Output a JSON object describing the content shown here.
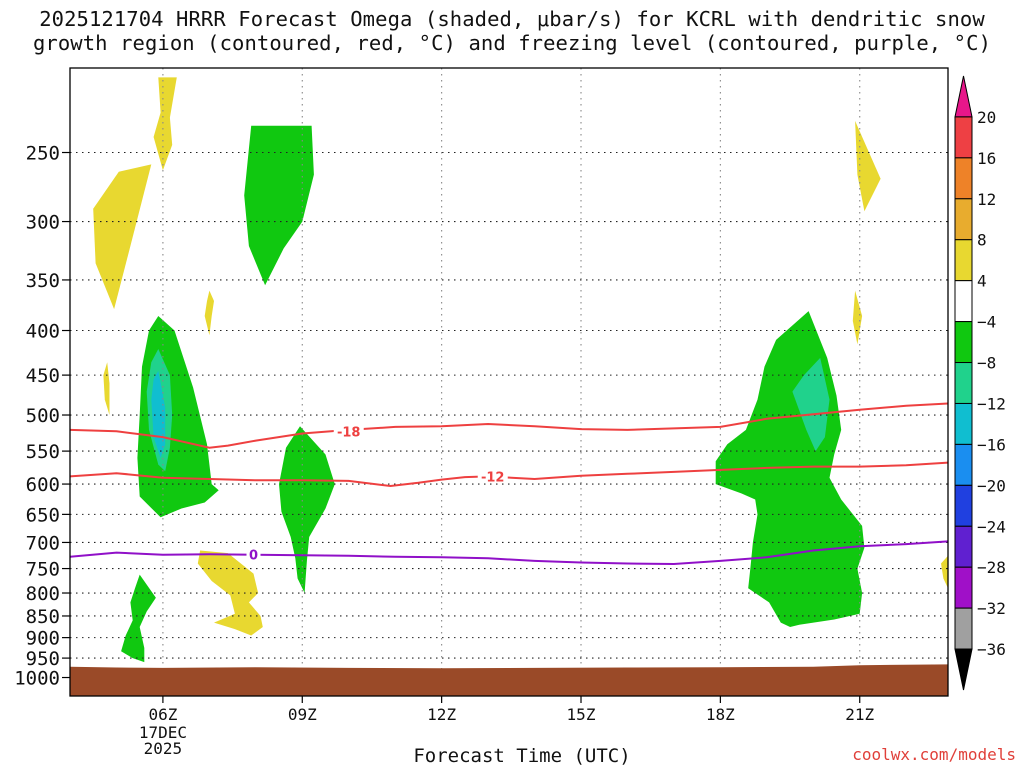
{
  "title_line1": "2025121704 HRRR Forecast Omega (shaded, μbar/s) for KCRL with dendritic snow",
  "title_line2": "growth region (contoured, red, °C) and freezing level (contoured, purple, °C)",
  "credit": "coolwx.com/models",
  "chart_data": {
    "type": "heatmap",
    "title": "2025121704 HRRR Forecast Omega (shaded, μbar/s) for KCRL with dendritic snow growth region (contoured, red, °C) and freezing level (contoured, purple, °C)",
    "xlabel": "Forecast Time (UTC)",
    "ylabel": "",
    "x_unit": "hour UTC, 17 Dec 2025",
    "xlim": [
      4,
      22.9
    ],
    "ylim": [
      1050,
      200
    ],
    "y_scale": "log",
    "x_ticks": [
      {
        "x": 6,
        "label": "06Z",
        "sublabels": [
          "17DEC",
          "2025"
        ]
      },
      {
        "x": 9,
        "label": "09Z"
      },
      {
        "x": 12,
        "label": "12Z"
      },
      {
        "x": 15,
        "label": "15Z"
      },
      {
        "x": 18,
        "label": "18Z"
      },
      {
        "x": 21,
        "label": "21Z"
      }
    ],
    "y_ticks": [
      250,
      300,
      350,
      400,
      450,
      500,
      550,
      600,
      650,
      700,
      750,
      800,
      850,
      900,
      950,
      1000
    ],
    "grid": true,
    "colorbar": {
      "position": "right",
      "levels": [
        20,
        16,
        12,
        8,
        4,
        -4,
        -8,
        -12,
        -16,
        -20,
        -24,
        -28,
        -32,
        -36
      ],
      "bins": [
        {
          "range": "above 20",
          "color": "#e8168a"
        },
        {
          "range": "16 to 20",
          "color": "#ee4044"
        },
        {
          "range": "12 to 16",
          "color": "#ee8228"
        },
        {
          "range": "8 to 12",
          "color": "#e8ac2e"
        },
        {
          "range": "4 to 8",
          "color": "#e8d830"
        },
        {
          "range": "-4 to 4",
          "color": "#ffffff"
        },
        {
          "range": "-8 to -4",
          "color": "#10c810"
        },
        {
          "range": "-12 to -8",
          "color": "#20d28c"
        },
        {
          "range": "-16 to -12",
          "color": "#10bed0"
        },
        {
          "range": "-20 to -16",
          "color": "#1a8ef0"
        },
        {
          "range": "-24 to -20",
          "color": "#2040e0"
        },
        {
          "range": "-28 to -24",
          "color": "#6020d0"
        },
        {
          "range": "-32 to -28",
          "color": "#a010c8"
        },
        {
          "range": "-36 to -32",
          "color": "#a0a0a0"
        },
        {
          "range": "below -36",
          "color": "#000000"
        }
      ]
    },
    "ground": {
      "color": "#9a4a28"
    },
    "shaded_regions": [
      {
        "bin": "4 to 8",
        "points": [
          [
            5.05,
            263
          ],
          [
            5.75,
            258
          ],
          [
            5.3,
            320
          ],
          [
            4.95,
            378
          ],
          [
            4.55,
            335
          ],
          [
            4.5,
            290
          ]
        ]
      },
      {
        "bin": "4 to 8",
        "points": [
          [
            5.9,
            205
          ],
          [
            6.3,
            205
          ],
          [
            6.15,
            228
          ],
          [
            6.2,
            245
          ],
          [
            6.0,
            262
          ],
          [
            5.8,
            240
          ],
          [
            5.95,
            225
          ]
        ]
      },
      {
        "bin": "4 to 8",
        "points": [
          [
            7.0,
            360
          ],
          [
            7.1,
            370
          ],
          [
            7.05,
            385
          ],
          [
            7.0,
            405
          ],
          [
            6.9,
            385
          ],
          [
            6.95,
            370
          ]
        ]
      },
      {
        "bin": "4 to 8",
        "points": [
          [
            4.8,
            435
          ],
          [
            4.85,
            460
          ],
          [
            4.85,
            500
          ],
          [
            4.75,
            480
          ],
          [
            4.72,
            450
          ]
        ]
      },
      {
        "bin": "4 to 8",
        "points": [
          [
            6.8,
            715
          ],
          [
            7.4,
            720
          ],
          [
            7.95,
            760
          ],
          [
            8.05,
            800
          ],
          [
            7.85,
            820
          ],
          [
            8.1,
            850
          ],
          [
            8.15,
            875
          ],
          [
            7.9,
            895
          ],
          [
            7.55,
            880
          ],
          [
            7.1,
            865
          ],
          [
            7.55,
            845
          ],
          [
            7.45,
            805
          ],
          [
            7.05,
            775
          ],
          [
            6.75,
            740
          ]
        ]
      },
      {
        "bin": "4 to 8",
        "points": [
          [
            20.9,
            230
          ],
          [
            21.45,
            268
          ],
          [
            21.1,
            292
          ],
          [
            20.95,
            265
          ]
        ]
      },
      {
        "bin": "4 to 8",
        "points": [
          [
            20.9,
            360
          ],
          [
            21.05,
            385
          ],
          [
            20.95,
            415
          ],
          [
            20.85,
            390
          ]
        ]
      },
      {
        "bin": "4 to 8",
        "points": [
          [
            22.75,
            740
          ],
          [
            22.9,
            725
          ],
          [
            22.9,
            790
          ],
          [
            22.8,
            770
          ]
        ]
      },
      {
        "bin": "-8 to -4",
        "points": [
          [
            5.9,
            385
          ],
          [
            6.25,
            400
          ],
          [
            6.65,
            465
          ],
          [
            6.95,
            540
          ],
          [
            7.05,
            600
          ],
          [
            7.2,
            610
          ],
          [
            6.9,
            630
          ],
          [
            6.4,
            640
          ],
          [
            5.95,
            655
          ],
          [
            5.5,
            620
          ],
          [
            5.45,
            560
          ],
          [
            5.5,
            500
          ],
          [
            5.55,
            440
          ],
          [
            5.7,
            400
          ]
        ]
      },
      {
        "bin": "-8 to -4",
        "points": [
          [
            7.9,
            233
          ],
          [
            9.2,
            233
          ],
          [
            9.25,
            265
          ],
          [
            9.0,
            300
          ],
          [
            8.6,
            322
          ],
          [
            8.2,
            355
          ],
          [
            7.85,
            320
          ],
          [
            7.75,
            280
          ]
        ]
      },
      {
        "bin": "-8 to -4",
        "points": [
          [
            8.95,
            515
          ],
          [
            9.5,
            555
          ],
          [
            9.7,
            600
          ],
          [
            9.5,
            640
          ],
          [
            9.25,
            675
          ],
          [
            9.15,
            690
          ],
          [
            9.1,
            735
          ],
          [
            9.05,
            800
          ],
          [
            8.9,
            770
          ],
          [
            8.85,
            730
          ],
          [
            8.75,
            690
          ],
          [
            8.55,
            645
          ],
          [
            8.5,
            600
          ],
          [
            8.65,
            545
          ]
        ]
      },
      {
        "bin": "-8 to -4",
        "points": [
          [
            5.5,
            762
          ],
          [
            5.85,
            810
          ],
          [
            5.65,
            840
          ],
          [
            5.5,
            875
          ],
          [
            5.6,
            925
          ],
          [
            5.6,
            960
          ],
          [
            5.35,
            950
          ],
          [
            5.1,
            933
          ],
          [
            5.2,
            895
          ],
          [
            5.35,
            860
          ],
          [
            5.3,
            820
          ],
          [
            5.4,
            790
          ]
        ]
      },
      {
        "bin": "-8 to -4",
        "points": [
          [
            19.9,
            380
          ],
          [
            20.3,
            430
          ],
          [
            20.5,
            475
          ],
          [
            20.6,
            520
          ],
          [
            20.45,
            555
          ],
          [
            20.35,
            590
          ],
          [
            20.6,
            625
          ],
          [
            21.05,
            670
          ],
          [
            21.1,
            710
          ],
          [
            20.95,
            750
          ],
          [
            21.05,
            800
          ],
          [
            21.0,
            845
          ],
          [
            20.45,
            858
          ],
          [
            19.7,
            870
          ],
          [
            19.5,
            875
          ],
          [
            19.3,
            865
          ],
          [
            19.05,
            820
          ],
          [
            18.6,
            790
          ],
          [
            18.65,
            745
          ],
          [
            18.7,
            700
          ],
          [
            18.8,
            650
          ],
          [
            18.75,
            625
          ],
          [
            18.45,
            615
          ],
          [
            17.9,
            600
          ],
          [
            17.9,
            585
          ],
          [
            17.9,
            565
          ],
          [
            18.15,
            540
          ],
          [
            18.55,
            520
          ],
          [
            18.8,
            480
          ],
          [
            18.95,
            440
          ],
          [
            19.2,
            410
          ]
        ]
      },
      {
        "bin": "-12 to -8",
        "points": [
          [
            5.9,
            420
          ],
          [
            6.15,
            450
          ],
          [
            6.2,
            500
          ],
          [
            6.15,
            545
          ],
          [
            6.05,
            580
          ],
          [
            5.9,
            570
          ],
          [
            5.7,
            520
          ],
          [
            5.65,
            470
          ],
          [
            5.75,
            435
          ]
        ]
      },
      {
        "bin": "-12 to -8",
        "points": [
          [
            20.15,
            430
          ],
          [
            20.35,
            480
          ],
          [
            20.25,
            530
          ],
          [
            20.05,
            550
          ],
          [
            19.85,
            520
          ],
          [
            19.55,
            470
          ],
          [
            19.8,
            450
          ]
        ]
      },
      {
        "bin": "-16 to -12",
        "points": [
          [
            5.9,
            445
          ],
          [
            6.05,
            490
          ],
          [
            6.05,
            540
          ],
          [
            5.95,
            560
          ],
          [
            5.8,
            530
          ],
          [
            5.75,
            480
          ],
          [
            5.8,
            455
          ]
        ]
      }
    ],
    "series": [
      {
        "name": "-18",
        "color": "#ee4040",
        "label_at": [
          10.0,
          522
        ],
        "x": [
          4.0,
          5.0,
          6.0,
          7.0,
          7.4,
          8.0,
          9.0,
          10.0,
          11.0,
          12.0,
          13.0,
          14.0,
          15.0,
          16.0,
          17.0,
          18.0,
          19.0,
          20.0,
          21.0,
          22.0,
          22.9
        ],
        "y": [
          520,
          522,
          530,
          545,
          542,
          535,
          525,
          520,
          516,
          515,
          512,
          515,
          519,
          520,
          518,
          516,
          505,
          499,
          493,
          488,
          485
        ]
      },
      {
        "name": "-12",
        "color": "#ee4040",
        "label_at": [
          13.1,
          588
        ],
        "x": [
          4.0,
          5.0,
          6.0,
          7.0,
          8.0,
          9.0,
          10.0,
          10.9,
          11.5,
          12.0,
          12.5,
          13.0,
          13.5,
          14.0,
          15.0,
          16.0,
          17.0,
          18.0,
          19.0,
          20.0,
          21.0,
          22.0,
          22.9
        ],
        "y": [
          588,
          583,
          590,
          592,
          594,
          594,
          595,
          603,
          598,
          593,
          589,
          588,
          590,
          592,
          587,
          584,
          581,
          578,
          575,
          573,
          573,
          571,
          567
        ]
      },
      {
        "name": "0",
        "color": "#9010c8",
        "label_at": [
          7.95,
          723
        ],
        "x": [
          4.0,
          5.0,
          6.0,
          7.0,
          8.0,
          9.0,
          10.0,
          11.0,
          12.0,
          13.0,
          14.0,
          15.0,
          16.0,
          17.0,
          18.0,
          19.0,
          20.0,
          21.0,
          22.0,
          22.9
        ],
        "y": [
          727,
          719,
          723,
          722,
          723,
          724,
          725,
          727,
          728,
          730,
          735,
          738,
          740,
          741,
          735,
          728,
          715,
          707,
          703,
          698
        ]
      }
    ]
  }
}
